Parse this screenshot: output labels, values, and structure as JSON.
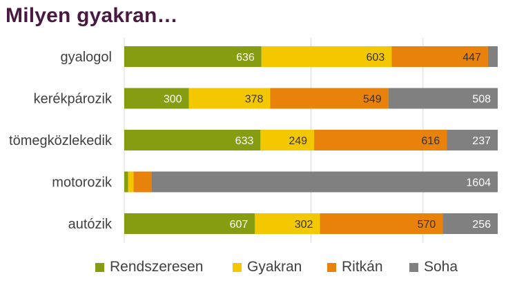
{
  "chart_data": {
    "type": "bar",
    "orientation": "horizontal",
    "stacked": true,
    "title": "Milyen gyakran…",
    "categories": [
      "gyalogol",
      "kerékpározik",
      "tömegközlekedik",
      "motorozik",
      "autózik"
    ],
    "series": [
      {
        "name": "Rendszeresen",
        "color": "#869c11",
        "label_color": "#ffffff",
        "values": [
          636,
          300,
          633,
          18,
          607
        ]
      },
      {
        "name": "Gyakran",
        "color": "#f4c800",
        "label_color": "#333333",
        "values": [
          603,
          378,
          249,
          25,
          302
        ]
      },
      {
        "name": "Ritkán",
        "color": "#e8820a",
        "label_color": "#333333",
        "values": [
          447,
          549,
          616,
          83,
          570
        ]
      },
      {
        "name": "Soha",
        "color": "#808080",
        "label_color": "#ffffff",
        "values": [
          45,
          508,
          237,
          1604,
          256
        ]
      }
    ],
    "data_labels": [
      [
        "636",
        "603",
        "447",
        ""
      ],
      [
        "300",
        "378",
        "549",
        "508"
      ],
      [
        "633",
        "249",
        "616",
        "237"
      ],
      [
        "",
        "",
        "",
        "1604"
      ],
      [
        "607",
        "302",
        "570",
        "256"
      ]
    ],
    "grid": "vertical",
    "legend_position": "bottom"
  }
}
